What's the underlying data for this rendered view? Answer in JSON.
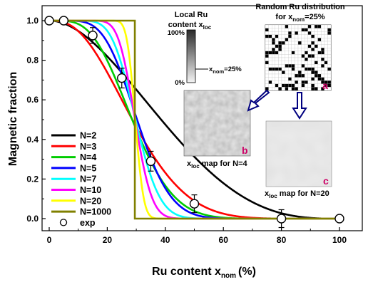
{
  "chart_data": {
    "type": "line",
    "xlabel": "Ru content x",
    "xlabel_sub": "nom",
    "xlabel_unit": "(%)",
    "ylabel": "Magnetic fraction",
    "xlim": [
      0,
      100
    ],
    "ylim": [
      0,
      1.0
    ],
    "x_ticks": [
      "0",
      "20",
      "40",
      "60",
      "80",
      "100"
    ],
    "y_ticks": [
      "0.0",
      "0.2",
      "0.4",
      "0.6",
      "0.8",
      "1.0"
    ],
    "legend_placement": "bottom-left",
    "series": [
      {
        "name": "N=2",
        "color": "#000000",
        "N": 2
      },
      {
        "name": "N=3",
        "color": "#ff0000",
        "N": 3
      },
      {
        "name": "N=4",
        "color": "#00cc00",
        "N": 4
      },
      {
        "name": "N=5",
        "color": "#0000ff",
        "N": 5
      },
      {
        "name": "N=7",
        "color": "#00ffff",
        "N": 7
      },
      {
        "name": "N=10",
        "color": "#ff00ff",
        "N": 10
      },
      {
        "name": "N=20",
        "color": "#ffff00",
        "N": 20
      },
      {
        "name": "N=1000",
        "color": "#808000",
        "N": 1000
      }
    ],
    "exp": {
      "name": "exp",
      "points": [
        {
          "x": 0,
          "y": 1.0,
          "err": 0.0
        },
        {
          "x": 5,
          "y": 1.0,
          "err": 0.0
        },
        {
          "x": 15,
          "y": 0.925,
          "err": 0.04
        },
        {
          "x": 25,
          "y": 0.71,
          "err": 0.05
        },
        {
          "x": 35,
          "y": 0.29,
          "err": 0.05
        },
        {
          "x": 50,
          "y": 0.075,
          "err": 0.045
        },
        {
          "x": 80,
          "y": 0.0,
          "err": 0.045
        },
        {
          "x": 100,
          "y": 0.0,
          "err": 0.0
        }
      ]
    },
    "threshold_x": 29.5
  },
  "insets": {
    "colorbar": {
      "title_line1": "Local Ru",
      "title_line2": "content x",
      "title_sub": "loc",
      "max_label": "100%",
      "min_label": "0%",
      "marker_label": "x",
      "marker_sub": "nom",
      "marker_value": "=25%"
    },
    "panel_a": {
      "title_line1": "Random Ru distribution",
      "title_line2": "for x",
      "title_sub": "nom",
      "title_value": "=25%",
      "letter": "a",
      "letter_color": "#cc0066"
    },
    "panel_b": {
      "caption": "x",
      "caption_sub": "loc",
      "caption_rest": " map for N=4",
      "letter": "b",
      "letter_color": "#cc0066"
    },
    "panel_c": {
      "caption": "x",
      "caption_sub": "loc",
      "caption_rest": " map for N=20",
      "letter": "c",
      "letter_color": "#cc0066"
    },
    "arrow_color": "#000080"
  }
}
